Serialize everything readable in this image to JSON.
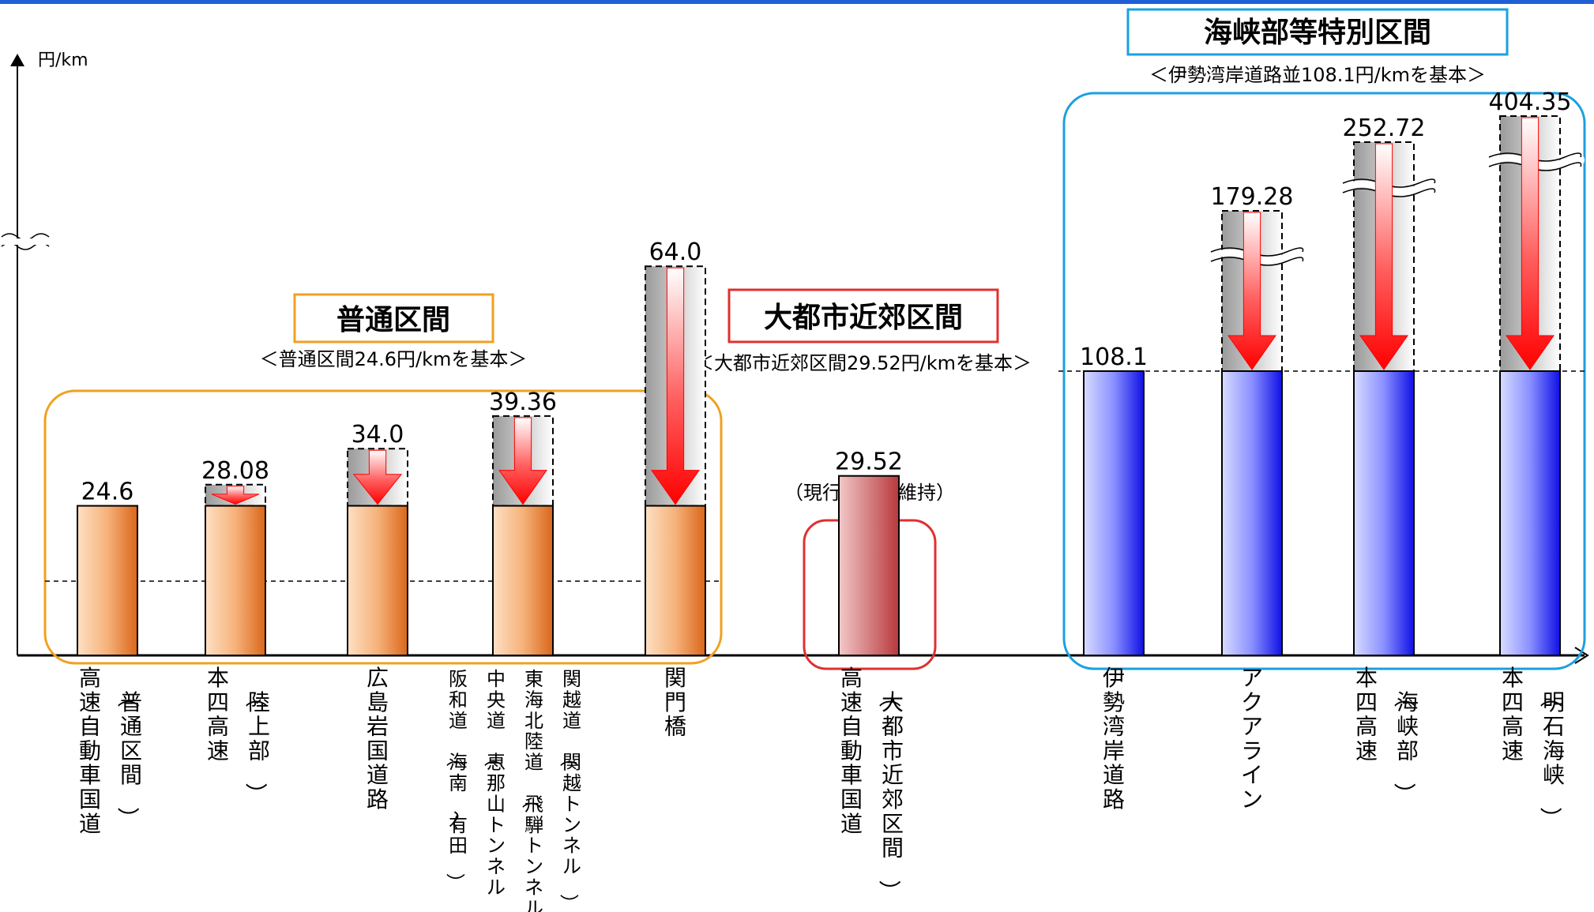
{
  "chart_data": {
    "type": "bar",
    "unit_label": "円/km",
    "note": "（現行水準を維持）",
    "groups": [
      {
        "title": "普通区間",
        "subtitle": "＜普通区間24.6円/kmを基本＞",
        "color": "#f0a020",
        "base_value": 24.6,
        "bars": [
          {
            "label_main": "高速自動車国道",
            "label_sub": "（普通区間）",
            "value_label": "24.6",
            "value": 24.6
          },
          {
            "label_main": "本四高速",
            "label_sub": "（陸上部）",
            "value_label": "28.08",
            "value": 28.08
          },
          {
            "label_main": "広島岩国道路",
            "label_sub": "",
            "value_label": "34.0",
            "value": 34.0
          },
          {
            "label_cols": [
              "阪和道（海南～有田）",
              "中央道（恵那山トンネル）",
              "東海北陸道（飛騨トンネル）",
              "関越道（関越トンネル）"
            ],
            "value_label": "39.36",
            "value": 39.36
          },
          {
            "label_main": "関門橋",
            "label_sub": "",
            "value_label": "64.0",
            "value": 64.0
          }
        ]
      },
      {
        "title": "大都市近郊区間",
        "subtitle": "＜大都市近郊区間29.52円/kmを基本＞",
        "color": "#e03030",
        "base_value": 29.52,
        "bars": [
          {
            "label_main": "高速自動車国道",
            "label_sub": "（大都市近郊区間）",
            "value_label": "29.52",
            "value": 29.52
          }
        ]
      },
      {
        "title": "海峡部等特別区間",
        "subtitle": "＜伊勢湾岸道路並108.1円/kmを基本＞",
        "color": "#1aa0e0",
        "base_value": 108.1,
        "bars": [
          {
            "label_main": "伊勢湾岸道路",
            "label_sub": "",
            "value_label": "108.1",
            "value": 108.1
          },
          {
            "label_main": "アクアライン",
            "label_sub": "",
            "value_label": "179.28",
            "value": 179.28
          },
          {
            "label_main": "本四高速",
            "label_sub": "（海峡部）",
            "value_label": "252.72",
            "value": 252.72
          },
          {
            "label_main": "本四高速",
            "label_sub": "（明石海峡）",
            "value_label": "404.35",
            "value": 404.35
          }
        ]
      }
    ],
    "y_axis_broken": true,
    "colors": {
      "orange_bar": "#e6802e",
      "red_bar": "#c85050",
      "blue_bar": "#1a1aee",
      "arrow": "#ff0000",
      "axis_top_bar": "#1f5fd6"
    }
  }
}
